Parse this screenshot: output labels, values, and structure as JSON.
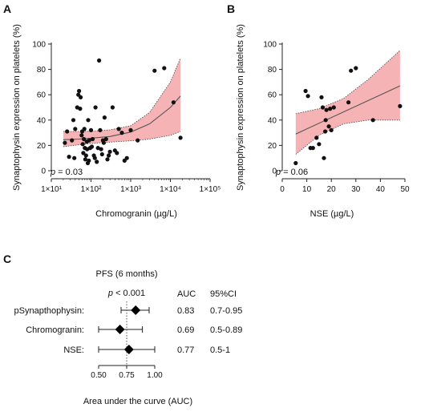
{
  "chart_data": [
    {
      "panel": "A",
      "type": "scatter",
      "xlabel": "Chromogranin (µg/L)",
      "ylabel": "Synaptophysin expression on platelets (%)",
      "xscale": "log",
      "xlim": [
        10,
        100000
      ],
      "ylim": [
        0,
        100
      ],
      "x_ticks": [
        10,
        100,
        1000,
        10000,
        100000
      ],
      "x_tick_labels": [
        "1×10¹",
        "1×10²",
        "1×10³",
        "1×10⁴",
        "1×10⁵"
      ],
      "y_ticks": [
        0,
        20,
        40,
        60,
        80,
        100
      ],
      "y_tick_labels": [
        "0",
        "20",
        "40",
        "60",
        "80",
        "100"
      ],
      "annotation_prefix": "p",
      "annotation_value": " = 0.03",
      "fit_color": "#555555",
      "band_color": "#f4a6a8",
      "fit_line": {
        "x": [
          20,
          50,
          100,
          300,
          1000,
          3000,
          10000,
          18000
        ],
        "y": [
          24.5,
          25,
          25.7,
          27,
          30.5,
          37,
          50,
          59
        ]
      },
      "band_upper": {
        "x": [
          20,
          50,
          100,
          300,
          1000,
          3000,
          10000,
          18000
        ],
        "y": [
          31,
          31,
          31.2,
          32.3,
          35.5,
          46,
          70,
          89
        ]
      },
      "band_lower": {
        "x": [
          20,
          50,
          100,
          300,
          1000,
          3000,
          10000,
          18000
        ],
        "y": [
          19,
          20.5,
          21.5,
          22.6,
          23.6,
          25,
          28,
          31
        ]
      },
      "points": [
        [
          22,
          22
        ],
        [
          25,
          31
        ],
        [
          28,
          11
        ],
        [
          33,
          24
        ],
        [
          36,
          40
        ],
        [
          38,
          10
        ],
        [
          40,
          33
        ],
        [
          45,
          50
        ],
        [
          48,
          60
        ],
        [
          50,
          63
        ],
        [
          53,
          49
        ],
        [
          55,
          58
        ],
        [
          58,
          28
        ],
        [
          60,
          31
        ],
        [
          62,
          21
        ],
        [
          64,
          14
        ],
        [
          66,
          25
        ],
        [
          68,
          33
        ],
        [
          70,
          18
        ],
        [
          72,
          9
        ],
        [
          75,
          12
        ],
        [
          78,
          23
        ],
        [
          80,
          17
        ],
        [
          83,
          6
        ],
        [
          85,
          40
        ],
        [
          88,
          8
        ],
        [
          90,
          24
        ],
        [
          95,
          18
        ],
        [
          100,
          32
        ],
        [
          105,
          19
        ],
        [
          110,
          25
        ],
        [
          118,
          12
        ],
        [
          125,
          10
        ],
        [
          130,
          50
        ],
        [
          140,
          7
        ],
        [
          150,
          18
        ],
        [
          160,
          87
        ],
        [
          170,
          32
        ],
        [
          180,
          17
        ],
        [
          190,
          13
        ],
        [
          200,
          24
        ],
        [
          210,
          22
        ],
        [
          220,
          42
        ],
        [
          240,
          25
        ],
        [
          260,
          9
        ],
        [
          280,
          12
        ],
        [
          300,
          15
        ],
        [
          350,
          50
        ],
        [
          400,
          16
        ],
        [
          450,
          14
        ],
        [
          500,
          33
        ],
        [
          600,
          30
        ],
        [
          700,
          8
        ],
        [
          800,
          10
        ],
        [
          1000,
          32
        ],
        [
          1500,
          24
        ],
        [
          4000,
          79
        ],
        [
          7000,
          81
        ],
        [
          12000,
          54
        ],
        [
          18000,
          26
        ]
      ]
    },
    {
      "panel": "B",
      "type": "scatter",
      "xlabel": "NSE (µg/L)",
      "ylabel": "Synaptophysin expression on platelets (%)",
      "xlim": [
        0,
        50
      ],
      "ylim": [
        0,
        100
      ],
      "x_ticks": [
        0,
        10,
        20,
        30,
        40,
        50
      ],
      "x_tick_labels": [
        "0",
        "10",
        "20",
        "30",
        "40",
        "50"
      ],
      "y_ticks": [
        0,
        20,
        40,
        60,
        80,
        100
      ],
      "y_tick_labels": [
        "0",
        "20",
        "40",
        "60",
        "80",
        "100"
      ],
      "annotation_prefix": "p",
      "annotation_value": " = 0.06",
      "fit_color": "#555555",
      "band_color": "#f4a6a8",
      "fit_line": {
        "x": [
          5.5,
          48
        ],
        "y": [
          29,
          67
        ]
      },
      "band_upper": {
        "x": [
          5.5,
          15,
          25,
          35,
          48
        ],
        "y": [
          45,
          49,
          57,
          72,
          95
        ]
      },
      "band_lower": {
        "x": [
          5.5,
          15,
          25,
          35,
          48
        ],
        "y": [
          13,
          28,
          37,
          40,
          40
        ]
      },
      "points": [
        [
          5.5,
          6
        ],
        [
          9.5,
          63
        ],
        [
          10.5,
          59
        ],
        [
          11.5,
          18
        ],
        [
          12.5,
          18
        ],
        [
          14,
          26
        ],
        [
          15,
          21
        ],
        [
          16,
          58
        ],
        [
          16.5,
          50
        ],
        [
          17,
          10
        ],
        [
          17.5,
          31
        ],
        [
          17.7,
          40
        ],
        [
          18,
          48
        ],
        [
          19,
          35
        ],
        [
          19.5,
          49
        ],
        [
          20,
          32
        ],
        [
          21,
          50
        ],
        [
          27,
          54
        ],
        [
          28,
          79
        ],
        [
          30,
          81
        ],
        [
          37,
          40
        ],
        [
          48,
          51
        ]
      ]
    },
    {
      "panel": "C",
      "type": "forest",
      "title": "PFS (6 months)",
      "p_prefix": "p",
      "p_value": " < 0.001",
      "xlabel": "Area under the curve (AUC)",
      "xlim": [
        0.5,
        1.0
      ],
      "x_ticks": [
        0.5,
        0.75,
        1.0
      ],
      "x_tick_labels": [
        "0.50",
        "0.75",
        "1.00"
      ],
      "reference_line": 0.75,
      "col_auc_header": "AUC",
      "col_ci_header": "95%CI",
      "rows": [
        {
          "label": "pSynapthophysin:",
          "auc": 0.83,
          "low": 0.7,
          "high": 0.95,
          "auc_text": "0.83",
          "ci_text": "0.7-0.95"
        },
        {
          "label": "Chromogranin:",
          "auc": 0.69,
          "low": 0.5,
          "high": 0.89,
          "auc_text": "0.69",
          "ci_text": "0.5-0.89"
        },
        {
          "label": "NSE:",
          "auc": 0.77,
          "low": 0.5,
          "high": 1.0,
          "auc_text": "0.77",
          "ci_text": "0.5-1"
        }
      ]
    }
  ]
}
